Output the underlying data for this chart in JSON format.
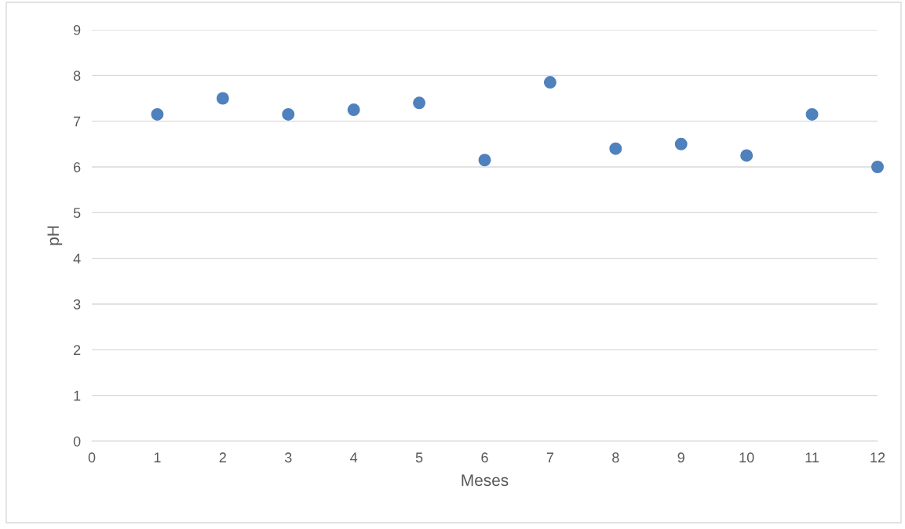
{
  "chart_data": {
    "type": "scatter",
    "xlabel": "Meses",
    "ylabel": "pH",
    "x": [
      1,
      2,
      3,
      4,
      5,
      6,
      7,
      8,
      9,
      10,
      11,
      12
    ],
    "series": [
      {
        "color": "#4f81bd",
        "values": [
          7.15,
          7.5,
          7.15,
          7.25,
          7.4,
          6.15,
          7.85,
          6.4,
          6.5,
          6.25,
          7.15,
          6.0
        ]
      }
    ],
    "xlim": [
      0,
      12
    ],
    "xticks": [
      0,
      1,
      2,
      3,
      4,
      5,
      6,
      7,
      8,
      9,
      10,
      11,
      12
    ],
    "ylim": [
      0,
      9
    ],
    "yticks": [
      0,
      1,
      2,
      3,
      4,
      5,
      6,
      7,
      8,
      9
    ],
    "grid": "y",
    "marker": "circle",
    "legend": false
  }
}
